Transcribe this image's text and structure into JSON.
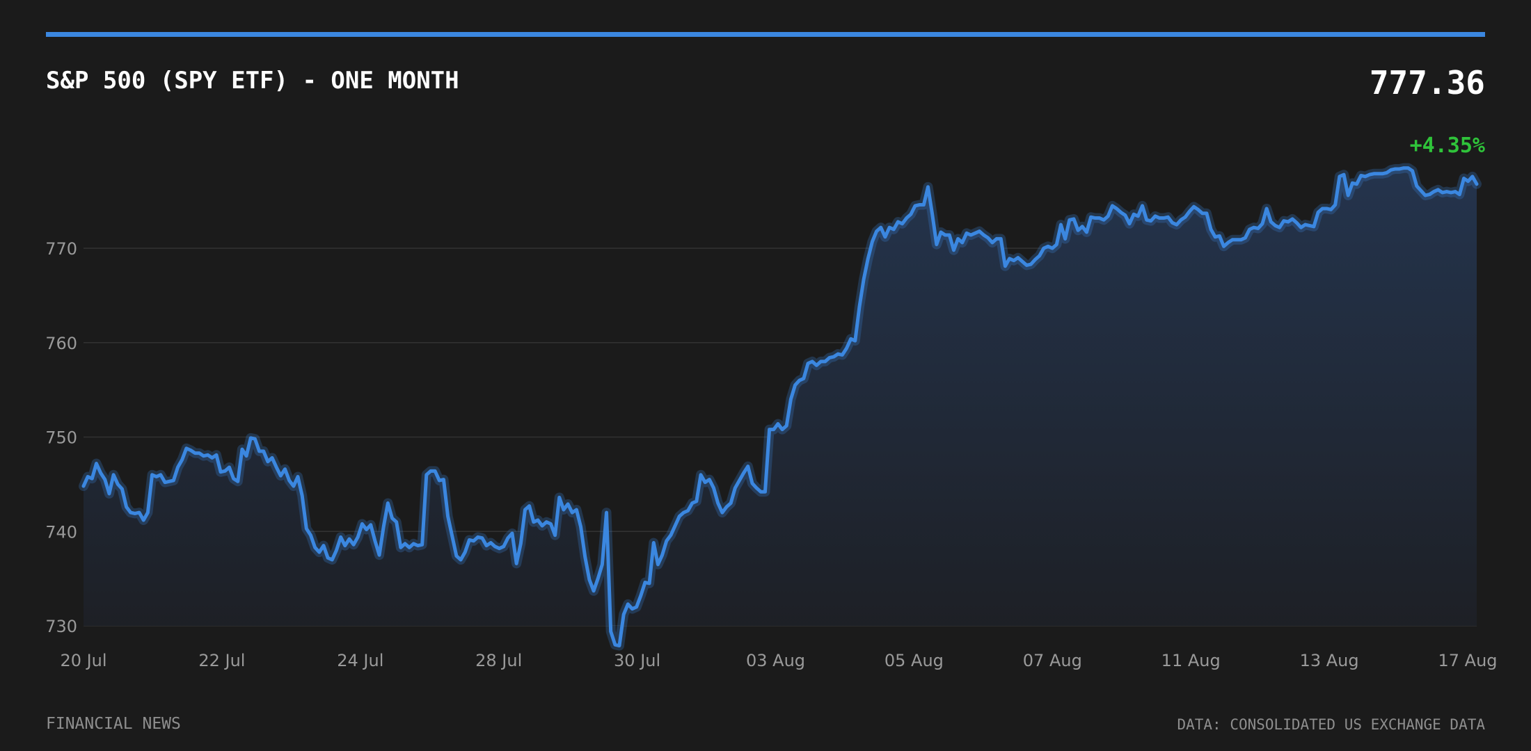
{
  "header": {
    "title": "S&P 500 (SPY ETF) - ONE MONTH",
    "price": "777.36",
    "change": "+4.35%"
  },
  "footer": {
    "source_left": "FINANCIAL NEWS",
    "source_right": "DATA: CONSOLIDATED US EXCHANGE DATA"
  },
  "colors": {
    "background": "#1b1b1b",
    "accent": "#3b87e0",
    "line": "#3b87e0",
    "positive": "#2fc33a",
    "grid": "#333333",
    "axis_text": "#9a9a9a"
  },
  "chart_data": {
    "type": "area",
    "title": "S&P 500 (SPY ETF) - ONE MONTH",
    "xlabel": "",
    "ylabel": "",
    "ylim": [
      728,
      781
    ],
    "y_ticks": [
      730,
      740,
      750,
      760,
      770
    ],
    "x_tick_labels": [
      "20 Jul",
      "22 Jul",
      "24 Jul",
      "28 Jul",
      "30 Jul",
      "03 Aug",
      "05 Aug",
      "07 Aug",
      "11 Aug",
      "13 Aug",
      "17 Aug"
    ],
    "grid": true,
    "legend": "none",
    "series": [
      {
        "values": [
          744.8,
          745.8,
          745.6,
          747.2,
          746.2,
          745.5,
          744.0,
          746.0,
          745.0,
          744.5,
          742.6,
          742.0,
          741.9,
          742.0,
          741.2,
          742.0,
          746.0,
          745.8,
          746.0,
          745.2,
          745.3,
          745.4,
          746.8,
          747.6,
          748.8,
          748.6,
          748.3,
          748.3,
          748.0,
          748.1,
          747.8,
          748.1,
          746.3,
          746.4,
          746.8,
          745.6,
          745.3,
          748.7,
          748.0,
          749.9,
          749.8,
          748.5,
          748.5,
          747.4,
          747.8,
          746.8,
          745.9,
          746.6,
          745.4,
          744.8,
          745.8,
          743.8,
          740.3,
          739.6,
          738.3,
          737.8,
          738.5,
          737.2,
          737.0,
          738.0,
          739.4,
          738.5,
          739.2,
          738.6,
          739.4,
          740.8,
          740.2,
          740.7,
          739.0,
          737.5,
          740.5,
          743.0,
          741.4,
          741.0,
          738.3,
          738.7,
          738.3,
          738.7,
          738.5,
          738.6,
          746.0,
          746.4,
          746.4,
          745.4,
          745.5,
          741.6,
          739.5,
          737.4,
          737.0,
          737.8,
          739.1,
          739.0,
          739.4,
          739.3,
          738.5,
          738.8,
          738.4,
          738.2,
          738.4,
          739.3,
          739.8,
          736.6,
          738.7,
          742.3,
          742.7,
          741.0,
          741.2,
          740.6,
          741.0,
          740.8,
          739.6,
          743.6,
          742.3,
          742.9,
          742.0,
          742.3,
          740.5,
          737.3,
          734.9,
          733.7,
          735.0,
          736.5,
          742.0,
          729.4,
          728.0,
          727.9,
          731.2,
          732.3,
          731.8,
          732.0,
          733.2,
          734.6,
          734.5,
          738.8,
          736.5,
          737.5,
          739.0,
          739.6,
          740.6,
          741.6,
          742.0,
          742.2,
          743.0,
          743.2,
          746.0,
          745.2,
          745.5,
          744.6,
          743.0,
          742.0,
          742.6,
          743.0,
          744.6,
          745.4,
          746.2,
          746.9,
          745.1,
          744.6,
          744.2,
          744.2,
          750.8,
          750.8,
          751.4,
          750.8,
          751.2,
          754.0,
          755.5,
          756.0,
          756.2,
          757.8,
          758.0,
          757.6,
          758.0,
          758.0,
          758.4,
          758.5,
          758.8,
          758.7,
          759.4,
          760.4,
          760.2,
          763.8,
          766.7,
          768.9,
          770.7,
          771.8,
          772.2,
          771.2,
          772.2,
          772.0,
          772.8,
          772.6,
          773.2,
          773.6,
          774.5,
          774.6,
          774.6,
          776.5,
          773.6,
          770.4,
          771.7,
          771.4,
          771.4,
          769.8,
          771.0,
          770.6,
          771.6,
          771.4,
          771.6,
          771.8,
          771.4,
          771.1,
          770.6,
          771.0,
          771.0,
          768.1,
          768.9,
          768.7,
          769.0,
          768.6,
          768.2,
          768.3,
          768.8,
          769.2,
          770.0,
          770.2,
          770.0,
          770.4,
          772.5,
          771.0,
          773.0,
          773.1,
          771.9,
          772.3,
          771.7,
          773.3,
          773.2,
          773.2,
          773.0,
          773.4,
          774.5,
          774.2,
          773.8,
          773.5,
          772.6,
          773.6,
          773.4,
          774.5,
          773.0,
          772.9,
          773.4,
          773.2,
          773.2,
          773.3,
          772.7,
          772.5,
          773.0,
          773.3,
          773.9,
          774.4,
          774.1,
          773.7,
          773.7,
          772.0,
          771.2,
          771.3,
          770.2,
          770.6,
          770.9,
          770.9,
          770.9,
          771.1,
          772.0,
          772.2,
          772.1,
          772.6,
          774.2,
          772.8,
          772.4,
          772.2,
          772.9,
          772.8,
          773.1,
          772.7,
          772.2,
          772.5,
          772.4,
          772.3,
          773.8,
          774.2,
          774.2,
          774.1,
          774.6,
          777.6,
          777.8,
          775.6,
          776.9,
          776.8,
          777.7,
          777.6,
          777.8,
          777.9,
          777.9,
          777.9,
          778.0,
          778.3,
          778.4,
          778.4,
          778.5,
          778.5,
          778.2,
          776.6,
          776.1,
          775.6,
          775.7,
          776.0,
          776.2,
          775.9,
          776.0,
          775.9,
          776.0,
          775.7,
          777.4,
          777.1,
          777.6,
          776.8
        ]
      }
    ]
  }
}
